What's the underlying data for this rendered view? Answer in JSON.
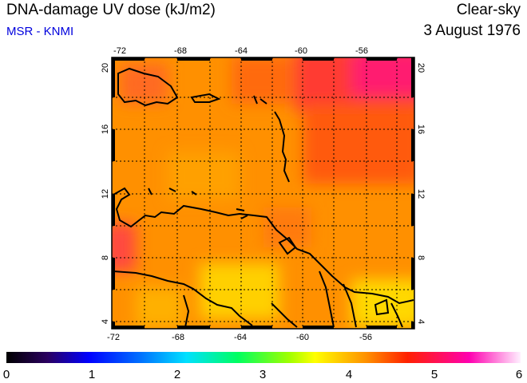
{
  "header": {
    "title": "DNA-damage UV dose (kJ/m2)",
    "source": "MSR - KNMI",
    "sky": "Clear-sky",
    "date": "3 August 1976"
  },
  "map": {
    "lon_ticks": [
      "-72",
      "-68",
      "-64",
      "-60",
      "-56"
    ],
    "lat_ticks": [
      "4",
      "8",
      "12",
      "16",
      "20"
    ],
    "lon_range": [
      -72,
      -52
    ],
    "lat_range": [
      4,
      20.5
    ],
    "field_colors": {
      "orange": "#ff9400",
      "red_orange": "#ff5a00",
      "red": "#ff2a30",
      "magenta": "#ff1a70",
      "yellow": "#ffdc00"
    }
  },
  "colorbar": {
    "labels": [
      "0",
      "1",
      "2",
      "3",
      "4",
      "5",
      "6"
    ],
    "range": [
      0,
      6
    ]
  }
}
